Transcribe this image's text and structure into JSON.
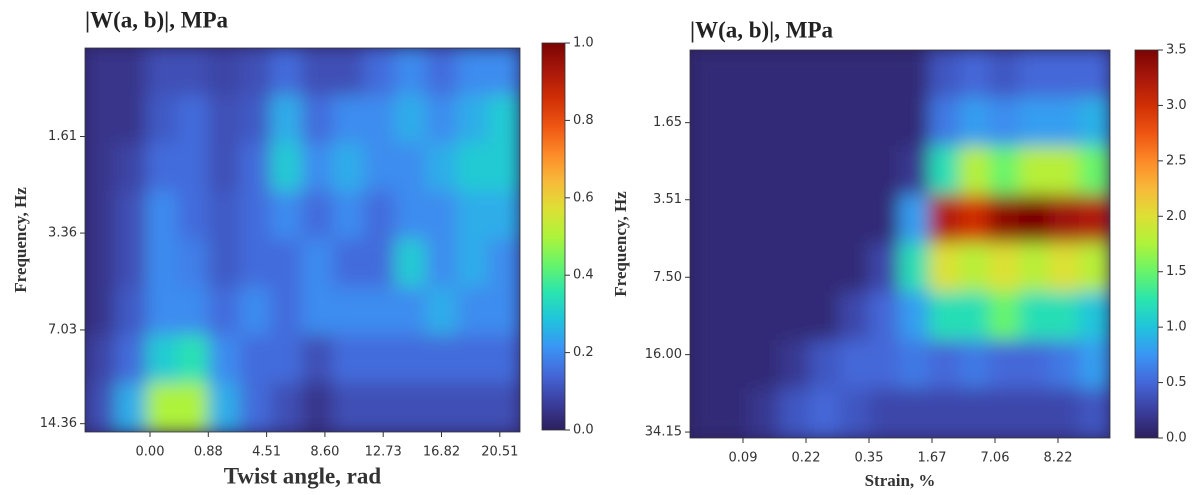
{
  "chart_data": [
    {
      "type": "heatmap",
      "title": "|W(a, b)|, MPa",
      "xlabel": "Twist angle, rad",
      "ylabel": "Frequency, Hz",
      "yscale": "log",
      "ylim": [
        15.3,
        0.82
      ],
      "yticks": [
        1.61,
        3.36,
        7.03,
        14.36
      ],
      "x_tick_labels": [
        "0.00",
        "0.88",
        "4.51",
        "8.60",
        "12.73",
        "16.82",
        "20.51"
      ],
      "zlim": [
        0,
        1
      ],
      "colorbar_ticks": [
        {
          "value": 0,
          "label": "0.0"
        },
        0.2,
        0.4,
        0.6,
        0.8,
        {
          "value": 1,
          "label": "1.0"
        }
      ],
      "colormap": [
        "#2c1f5c",
        "#3b3f9e",
        "#4467d8",
        "#3a95f5",
        "#20c4dc",
        "#2ae5ad",
        "#68f46a",
        "#aef33a",
        "#dde035",
        "#f8b93a",
        "#fc8a28",
        "#ee5512",
        "#d02f05",
        "#a8170a",
        "#7a0403"
      ],
      "z": [
        [
          0.05,
          0.05,
          0.1,
          0.1,
          0.08,
          0.1,
          0.15,
          0.1,
          0.1,
          0.15,
          0.2,
          0.15,
          0.2,
          0.2
        ],
        [
          0.05,
          0.05,
          0.12,
          0.15,
          0.1,
          0.12,
          0.25,
          0.15,
          0.2,
          0.2,
          0.25,
          0.2,
          0.25,
          0.3
        ],
        [
          0.05,
          0.08,
          0.15,
          0.15,
          0.1,
          0.15,
          0.3,
          0.2,
          0.25,
          0.2,
          0.2,
          0.25,
          0.3,
          0.3
        ],
        [
          0.05,
          0.1,
          0.2,
          0.15,
          0.12,
          0.15,
          0.2,
          0.15,
          0.2,
          0.15,
          0.2,
          0.2,
          0.25,
          0.25
        ],
        [
          0.05,
          0.1,
          0.2,
          0.18,
          0.12,
          0.15,
          0.15,
          0.2,
          0.15,
          0.15,
          0.3,
          0.2,
          0.25,
          0.2
        ],
        [
          0.05,
          0.12,
          0.2,
          0.2,
          0.15,
          0.2,
          0.15,
          0.2,
          0.2,
          0.2,
          0.2,
          0.25,
          0.2,
          0.2
        ],
        [
          0.08,
          0.15,
          0.3,
          0.35,
          0.2,
          0.15,
          0.15,
          0.1,
          0.15,
          0.15,
          0.15,
          0.15,
          0.15,
          0.15
        ],
        [
          0.1,
          0.25,
          0.5,
          0.5,
          0.25,
          0.15,
          0.1,
          0.05,
          0.1,
          0.1,
          0.1,
          0.1,
          0.1,
          0.1
        ]
      ]
    },
    {
      "type": "heatmap",
      "title": "|W(a, b)|, MPa",
      "xlabel": "Strain, %",
      "ylabel": "Frequency, Hz",
      "yscale": "log",
      "ylim": [
        36.2,
        0.81
      ],
      "yticks": [
        1.65,
        3.51,
        {
          "value": 7.5,
          "label": "7.50"
        },
        {
          "value": 16,
          "label": "16.00"
        },
        34.15
      ],
      "x_tick_labels": [
        "0.09",
        "0.22",
        "0.35",
        "1.67",
        "7.06",
        "8.22"
      ],
      "zlim": [
        0,
        3.5
      ],
      "colorbar_ticks": [
        {
          "value": 0,
          "label": "0.0"
        },
        0.5,
        {
          "value": 1,
          "label": "1.0"
        },
        1.5,
        {
          "value": 2,
          "label": "2.0"
        },
        2.5,
        {
          "value": 3,
          "label": "3.0"
        },
        3.5
      ],
      "colormap": [
        "#2c1f5c",
        "#3b3f9e",
        "#4467d8",
        "#3a95f5",
        "#20c4dc",
        "#2ae5ad",
        "#68f46a",
        "#aef33a",
        "#dde035",
        "#f8b93a",
        "#fc8a28",
        "#ee5512",
        "#d02f05",
        "#a8170a",
        "#7a0403"
      ],
      "z": [
        [
          0.1,
          0.1,
          0.1,
          0.1,
          0.1,
          0.1,
          0.1,
          0.1,
          0.4,
          0.5,
          0.4,
          0.5,
          0.5,
          0.5
        ],
        [
          0.1,
          0.1,
          0.1,
          0.1,
          0.1,
          0.1,
          0.1,
          0.1,
          0.6,
          0.8,
          0.7,
          0.8,
          0.8,
          0.9
        ],
        [
          0.1,
          0.1,
          0.1,
          0.1,
          0.1,
          0.1,
          0.1,
          0.2,
          1.2,
          1.8,
          1.5,
          1.8,
          1.8,
          1.5
        ],
        [
          0.1,
          0.1,
          0.1,
          0.1,
          0.1,
          0.1,
          0.1,
          0.8,
          3.2,
          3.0,
          3.4,
          3.5,
          3.3,
          3.2
        ],
        [
          0.1,
          0.1,
          0.1,
          0.1,
          0.1,
          0.1,
          0.3,
          1.2,
          2.0,
          1.8,
          2.0,
          1.8,
          2.0,
          1.8
        ],
        [
          0.1,
          0.1,
          0.1,
          0.1,
          0.1,
          0.3,
          0.5,
          0.8,
          1.2,
          1.2,
          1.5,
          1.2,
          1.2,
          1.0
        ],
        [
          0.1,
          0.1,
          0.1,
          0.2,
          0.4,
          0.5,
          0.5,
          0.6,
          0.5,
          0.6,
          0.5,
          0.5,
          0.6,
          0.8
        ],
        [
          0.1,
          0.1,
          0.2,
          0.4,
          0.5,
          0.4,
          0.3,
          0.3,
          0.3,
          0.3,
          0.3,
          0.3,
          0.3,
          0.4
        ]
      ]
    }
  ]
}
